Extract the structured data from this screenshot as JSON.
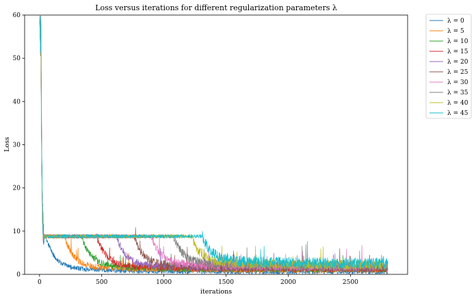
{
  "chart_data": {
    "type": "line",
    "title": "Loss versus iterations for different regularization parameters λ",
    "xlabel": "iterations",
    "ylabel": "Loss",
    "xlim": [
      -120,
      2960
    ],
    "ylim": [
      0,
      60
    ],
    "xticks": [
      0,
      500,
      1000,
      1500,
      2000,
      2500
    ],
    "yticks": [
      0,
      10,
      20,
      30,
      40,
      50,
      60
    ],
    "grid": false,
    "legend_position": "outside-top-right",
    "series": [
      {
        "name": "λ = 0",
        "color": "#1f77b4",
        "plateau_end": 50,
        "final": 0.6
      },
      {
        "name": "λ = 5",
        "color": "#ff7f0e",
        "plateau_end": 200,
        "final": 1.0
      },
      {
        "name": "λ = 10",
        "color": "#2ca02c",
        "plateau_end": 340,
        "final": 1.2
      },
      {
        "name": "λ = 15",
        "color": "#d62728",
        "plateau_end": 460,
        "final": 1.3
      },
      {
        "name": "λ = 20",
        "color": "#9467bd",
        "plateau_end": 620,
        "final": 1.5
      },
      {
        "name": "λ = 25",
        "color": "#8c564b",
        "plateau_end": 760,
        "final": 1.6
      },
      {
        "name": "λ = 30",
        "color": "#e377c2",
        "plateau_end": 900,
        "final": 1.8
      },
      {
        "name": "λ = 35",
        "color": "#7f7f7f",
        "plateau_end": 1080,
        "final": 2.0
      },
      {
        "name": "λ = 40",
        "color": "#bcbd22",
        "plateau_end": 1220,
        "final": 2.2
      },
      {
        "name": "λ = 45",
        "color": "#17becf",
        "plateau_end": 1310,
        "final": 2.6
      }
    ],
    "common": {
      "start_spike": 60,
      "plateau_level": 8.8,
      "last_iteration": 2800
    }
  }
}
